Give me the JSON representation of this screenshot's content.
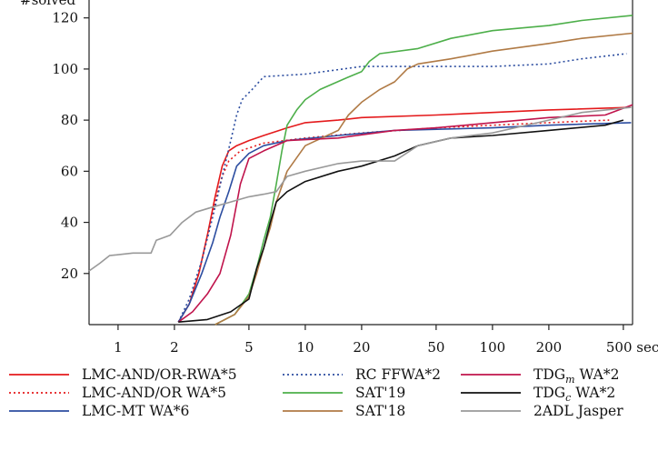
{
  "chart_data": {
    "type": "line",
    "ylabel": "#solved",
    "x_unit": "sec",
    "x_scale": "log",
    "xlim": [
      0.7,
      560
    ],
    "ylim": [
      0,
      127
    ],
    "x_ticks": [
      1,
      2,
      5,
      10,
      20,
      50,
      100,
      200,
      500
    ],
    "x_tick_labels": [
      "1",
      "2",
      "5",
      "10",
      "20",
      "50",
      "100",
      "200",
      "500 sec"
    ],
    "y_ticks": [
      20,
      40,
      60,
      80,
      100,
      120
    ],
    "y_tick_labels": [
      "20",
      "40",
      "60",
      "80",
      "100",
      "120"
    ],
    "legend_placement": "bottom",
    "series": [
      {
        "name": "LMC-AND/OR-RWA*5",
        "color": "#e41a1c",
        "dash": "solid",
        "points": [
          [
            2.1,
            1
          ],
          [
            2.4,
            8
          ],
          [
            2.7,
            20
          ],
          [
            3.0,
            35
          ],
          [
            3.3,
            50
          ],
          [
            3.6,
            62
          ],
          [
            3.9,
            68
          ],
          [
            4.3,
            70
          ],
          [
            5,
            72
          ],
          [
            6,
            74
          ],
          [
            8,
            77
          ],
          [
            10,
            79
          ],
          [
            15,
            80
          ],
          [
            20,
            81
          ],
          [
            50,
            82
          ],
          [
            100,
            83
          ],
          [
            200,
            84
          ],
          [
            550,
            85
          ]
        ]
      },
      {
        "name": "LMC-AND/OR WA*5",
        "color": "#e41a1c",
        "dash": "dotted",
        "points": [
          [
            2.1,
            1
          ],
          [
            2.4,
            8
          ],
          [
            2.7,
            20
          ],
          [
            3.0,
            35
          ],
          [
            3.3,
            48
          ],
          [
            3.6,
            58
          ],
          [
            3.9,
            64
          ],
          [
            4.5,
            68
          ],
          [
            6,
            71
          ],
          [
            10,
            73
          ],
          [
            20,
            75
          ],
          [
            50,
            77
          ],
          [
            100,
            78
          ],
          [
            200,
            79
          ],
          [
            420,
            80
          ]
        ]
      },
      {
        "name": "LMC-MT WA*6",
        "color": "#2c4da0",
        "dash": "solid",
        "points": [
          [
            2.1,
            1
          ],
          [
            2.4,
            8
          ],
          [
            2.8,
            20
          ],
          [
            3.2,
            32
          ],
          [
            3.5,
            42
          ],
          [
            3.9,
            52
          ],
          [
            4.3,
            62
          ],
          [
            5,
            67
          ],
          [
            6,
            70
          ],
          [
            8,
            72
          ],
          [
            15,
            74
          ],
          [
            30,
            76
          ],
          [
            100,
            77
          ],
          [
            200,
            78
          ],
          [
            550,
            79
          ]
        ]
      },
      {
        "name": "RC FFWA*2",
        "color": "#2c4da0",
        "dash": "dotted",
        "points": [
          [
            2.1,
            1
          ],
          [
            2.4,
            10
          ],
          [
            2.8,
            25
          ],
          [
            3.2,
            42
          ],
          [
            3.6,
            58
          ],
          [
            4.0,
            72
          ],
          [
            4.3,
            82
          ],
          [
            4.6,
            88
          ],
          [
            5.2,
            92
          ],
          [
            6,
            97
          ],
          [
            10,
            98
          ],
          [
            20,
            101
          ],
          [
            50,
            101
          ],
          [
            100,
            101
          ],
          [
            200,
            102
          ],
          [
            300,
            104
          ],
          [
            520,
            106
          ]
        ]
      },
      {
        "name": "SAT'19",
        "color": "#4daf4a",
        "dash": "solid",
        "points": [
          [
            3.3,
            0
          ],
          [
            4.2,
            4
          ],
          [
            5,
            12
          ],
          [
            5.5,
            22
          ],
          [
            6,
            33
          ],
          [
            6.5,
            42
          ],
          [
            7,
            55
          ],
          [
            7.5,
            68
          ],
          [
            8,
            78
          ],
          [
            9,
            84
          ],
          [
            10,
            88
          ],
          [
            12,
            92
          ],
          [
            16,
            96
          ],
          [
            20,
            99
          ],
          [
            22,
            103
          ],
          [
            25,
            106
          ],
          [
            40,
            108
          ],
          [
            60,
            112
          ],
          [
            100,
            115
          ],
          [
            200,
            117
          ],
          [
            300,
            119
          ],
          [
            560,
            121
          ]
        ]
      },
      {
        "name": "SAT'18",
        "color": "#b07a45",
        "dash": "solid",
        "points": [
          [
            3.3,
            0
          ],
          [
            4.2,
            4
          ],
          [
            5,
            11
          ],
          [
            5.5,
            20
          ],
          [
            6,
            30
          ],
          [
            6.5,
            38
          ],
          [
            7,
            48
          ],
          [
            8,
            60
          ],
          [
            10,
            70
          ],
          [
            15,
            76
          ],
          [
            17,
            82
          ],
          [
            20,
            87
          ],
          [
            25,
            92
          ],
          [
            30,
            95
          ],
          [
            35,
            100
          ],
          [
            40,
            102
          ],
          [
            60,
            104
          ],
          [
            100,
            107
          ],
          [
            200,
            110
          ],
          [
            300,
            112
          ],
          [
            560,
            114
          ]
        ]
      },
      {
        "name": "TDG_m WA*2",
        "color": "#c0144c",
        "dash": "solid",
        "points": [
          [
            2.1,
            1
          ],
          [
            2.5,
            5
          ],
          [
            3,
            12
          ],
          [
            3.5,
            20
          ],
          [
            4,
            35
          ],
          [
            4.5,
            55
          ],
          [
            5,
            65
          ],
          [
            6,
            68
          ],
          [
            8,
            72
          ],
          [
            15,
            73
          ],
          [
            30,
            76
          ],
          [
            50,
            77
          ],
          [
            100,
            79
          ],
          [
            200,
            81
          ],
          [
            400,
            82
          ],
          [
            560,
            86
          ]
        ]
      },
      {
        "name": "TDG_c WA*2",
        "color": "#111111",
        "dash": "solid",
        "points": [
          [
            2.1,
            1
          ],
          [
            3,
            2
          ],
          [
            4,
            5
          ],
          [
            5,
            10
          ],
          [
            5.5,
            22
          ],
          [
            6,
            30
          ],
          [
            6.5,
            40
          ],
          [
            7,
            48
          ],
          [
            8,
            52
          ],
          [
            10,
            56
          ],
          [
            15,
            60
          ],
          [
            20,
            62
          ],
          [
            30,
            66
          ],
          [
            40,
            70
          ],
          [
            60,
            73
          ],
          [
            100,
            74
          ],
          [
            200,
            76
          ],
          [
            400,
            78
          ],
          [
            500,
            80
          ]
        ]
      },
      {
        "name": "2ADL Jasper",
        "color": "#999999",
        "dash": "solid",
        "points": [
          [
            0.7,
            21
          ],
          [
            0.8,
            24
          ],
          [
            0.9,
            27
          ],
          [
            1.2,
            28
          ],
          [
            1.5,
            28
          ],
          [
            1.6,
            33
          ],
          [
            1.9,
            35
          ],
          [
            2.2,
            40
          ],
          [
            2.6,
            44
          ],
          [
            3.2,
            46
          ],
          [
            4,
            48
          ],
          [
            5,
            50
          ],
          [
            6,
            51
          ],
          [
            7,
            52
          ],
          [
            8,
            58
          ],
          [
            10,
            60
          ],
          [
            15,
            63
          ],
          [
            20,
            64
          ],
          [
            30,
            64
          ],
          [
            40,
            70
          ],
          [
            60,
            73
          ],
          [
            100,
            75
          ],
          [
            200,
            80
          ],
          [
            300,
            83
          ],
          [
            550,
            85
          ]
        ]
      }
    ]
  }
}
